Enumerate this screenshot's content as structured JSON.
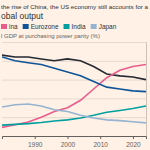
{
  "chart_data": {
    "type": "line",
    "title": [
      "the rise of China, the US economy still accounts for a",
      "obal output"
    ],
    "subtitle": "l GDP at purchasing power parity (%)",
    "x": [
      1980,
      1984,
      1988,
      1992,
      1996,
      2000,
      2004,
      2008,
      2012,
      2016,
      2020,
      2024
    ],
    "series": [
      {
        "color": "#262a33",
        "values": [
          21.5,
          21,
          21,
          20.5,
          20,
          20.5,
          20,
          18.5,
          16.5,
          16,
          15.7,
          15
        ]
      },
      {
        "name": "ina",
        "color": "#e95d8c",
        "values": [
          2.3,
          3,
          3.7,
          5,
          6.5,
          7.5,
          9.5,
          12.5,
          15.5,
          17.5,
          18.5,
          19
        ]
      },
      {
        "name": "Eurozone",
        "color": "#0f5499",
        "values": [
          21,
          20,
          19.5,
          19,
          18,
          17,
          16,
          14.5,
          13,
          12.5,
          12,
          11.8
        ]
      },
      {
        "name": "India",
        "color": "#00a0a0",
        "values": [
          2.9,
          3.1,
          3.3,
          3.6,
          4,
          4.3,
          4.8,
          5.5,
          6.3,
          6.8,
          7.3,
          8
        ]
      },
      {
        "name": "Japan",
        "color": "#96b4d2",
        "values": [
          7.7,
          8.3,
          8.5,
          8,
          7,
          6.5,
          5.5,
          4.8,
          4.3,
          4.1,
          3.8,
          3.5
        ]
      }
    ],
    "xlim": [
      1980,
      2024
    ],
    "xticks": [
      1990,
      2000,
      2010,
      2020
    ],
    "ylim": [
      0,
      25
    ],
    "yticks": [
      0,
      5,
      10,
      15,
      20,
      25
    ],
    "grid": true,
    "tick_labels": "x"
  }
}
